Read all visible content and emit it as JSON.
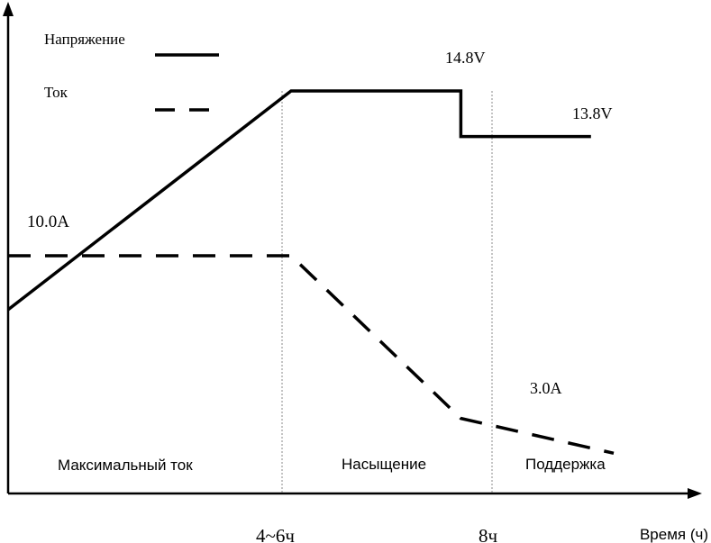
{
  "chart_data": {
    "type": "line",
    "xlabel": "Время (ч)",
    "x_ticks": [
      "4~6ч",
      "8ч"
    ],
    "legend": {
      "placement": "top-left",
      "entries": [
        {
          "name": "Напряжение",
          "style": "solid"
        },
        {
          "name": "Ток",
          "style": "dashed"
        }
      ]
    },
    "phases": [
      "Максимальный ток",
      "Насыщение",
      "Поддержка"
    ],
    "annotations": {
      "voltage_peak": "14.8V",
      "voltage_float": "13.8V",
      "current_max": "10.0A",
      "current_float": "3.0A"
    },
    "series": [
      {
        "name": "Напряжение",
        "style": "solid",
        "points": [
          [
            0,
            10.0
          ],
          [
            5,
            14.8
          ],
          [
            8,
            14.8
          ],
          [
            8,
            13.8
          ],
          [
            10.3,
            13.8
          ]
        ]
      },
      {
        "name": "Ток",
        "style": "dashed",
        "points": [
          [
            0,
            10.0
          ],
          [
            5,
            10.0
          ],
          [
            8,
            3.0
          ],
          [
            10.7,
            1.5
          ]
        ]
      }
    ],
    "xlim": [
      0,
      12.4
    ],
    "grid": false,
    "line_color": "#000000"
  }
}
